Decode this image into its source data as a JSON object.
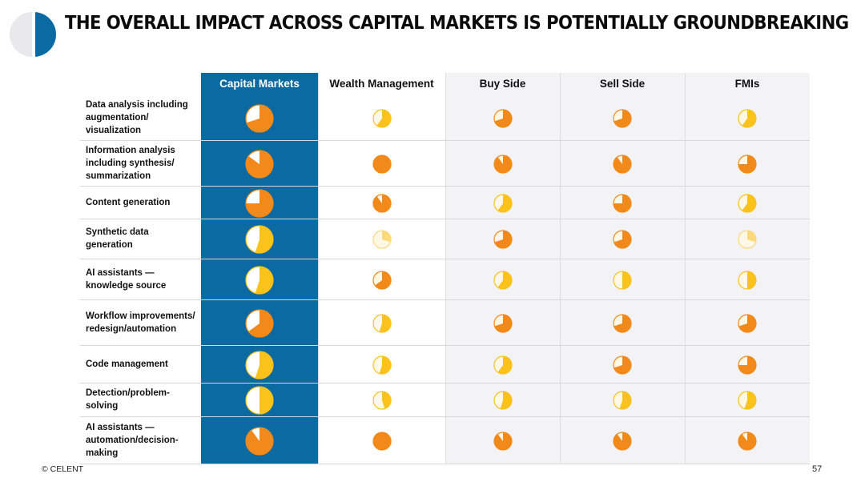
{
  "title": "THE OVERALL IMPACT ACROSS CAPITAL MARKETS IS POTENTIALLY GROUNDBREAKING",
  "columns": [
    "Capital Markets",
    "Wealth Management",
    "Buy Side",
    "Sell Side",
    "FMIs"
  ],
  "rows": [
    "Data analysis including augmentation/ visualization",
    "Information analysis including synthesis/ summarization",
    "Content generation",
    "Synthetic data generation",
    "AI assistants — knowledge source",
    "Workflow improvements/ redesign/automation",
    "Code management",
    "Detection/problem-solving",
    "AI assistants — automation/decision-making"
  ],
  "ratings": [
    [
      0.7,
      0.6,
      0.7,
      0.7,
      0.6
    ],
    [
      0.85,
      1.0,
      0.9,
      0.9,
      0.75
    ],
    [
      0.75,
      0.9,
      0.6,
      0.75,
      0.6
    ],
    [
      0.55,
      0.3,
      0.7,
      0.7,
      0.3
    ],
    [
      0.55,
      0.65,
      0.6,
      0.5,
      0.5
    ],
    [
      0.65,
      0.55,
      0.7,
      0.7,
      0.7
    ],
    [
      0.55,
      0.55,
      0.6,
      0.7,
      0.75
    ],
    [
      0.5,
      0.45,
      0.55,
      0.55,
      0.55
    ],
    [
      0.9,
      1.0,
      0.9,
      0.9,
      0.9
    ]
  ],
  "colors": {
    "header_blue": "#0b6aa2",
    "pie_orange": "#f28a1b",
    "pie_yellow": "#fcc21c",
    "pie_pale": "#fdd97a",
    "pie_bg": "#fff8e6"
  },
  "footer": {
    "copyright": "© CELENT",
    "page_number": "57"
  }
}
